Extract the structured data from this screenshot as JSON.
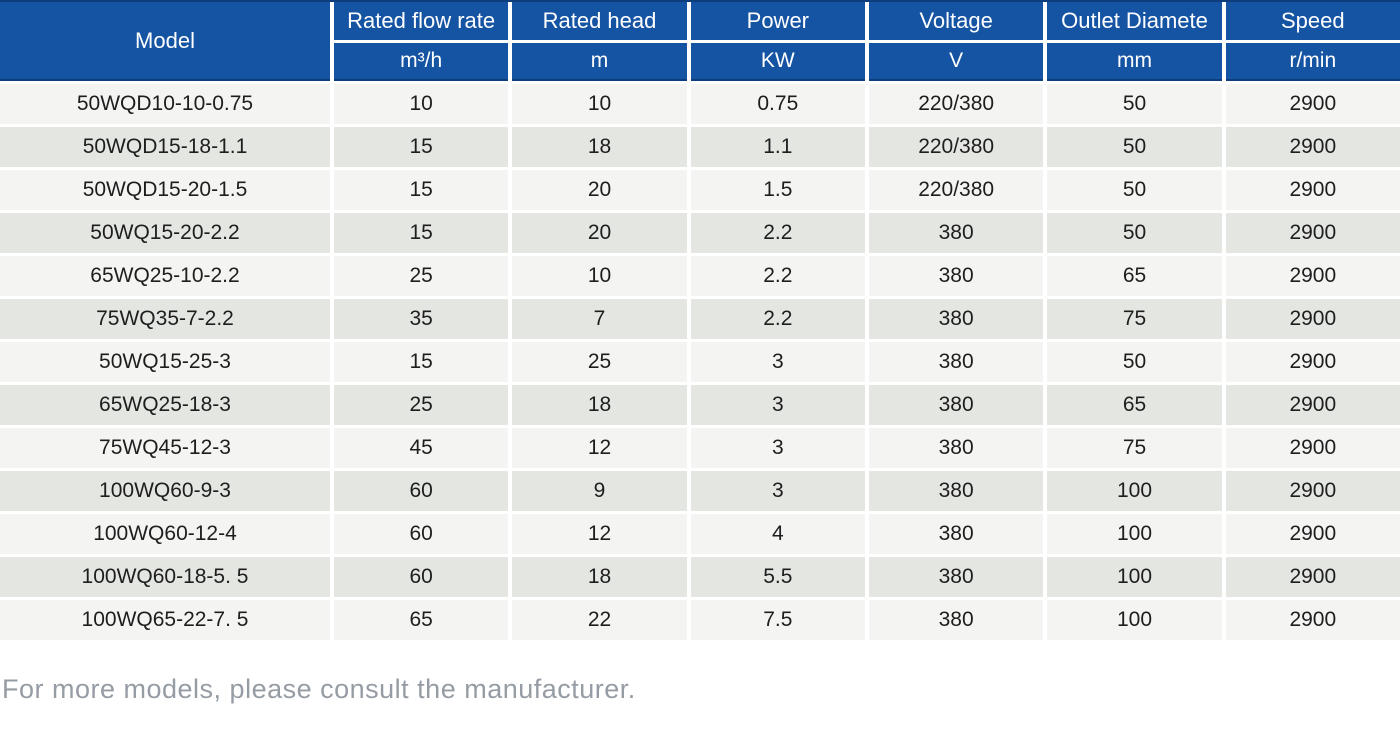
{
  "header": {
    "columns": [
      {
        "label": "Model",
        "unit": ""
      },
      {
        "label": "Rated flow rate",
        "unit": "m³/h"
      },
      {
        "label": "Rated head",
        "unit": "m"
      },
      {
        "label": "Power",
        "unit": "KW"
      },
      {
        "label": "Voltage",
        "unit": "V"
      },
      {
        "label": "Outlet Diamete",
        "unit": "mm"
      },
      {
        "label": "Speed",
        "unit": "r/min"
      }
    ]
  },
  "rows": [
    [
      "50WQD10-10-0.75",
      "10",
      "10",
      "0.75",
      "220/380",
      "50",
      "2900"
    ],
    [
      "50WQD15-18-1.1",
      "15",
      "18",
      "1.1",
      "220/380",
      "50",
      "2900"
    ],
    [
      "50WQD15-20-1.5",
      "15",
      "20",
      "1.5",
      "220/380",
      "50",
      "2900"
    ],
    [
      "50WQ15-20-2.2",
      "15",
      "20",
      "2.2",
      "380",
      "50",
      "2900"
    ],
    [
      "65WQ25-10-2.2",
      "25",
      "10",
      "2.2",
      "380",
      "65",
      "2900"
    ],
    [
      "75WQ35-7-2.2",
      "35",
      "7",
      "2.2",
      "380",
      "75",
      "2900"
    ],
    [
      "50WQ15-25-3",
      "15",
      "25",
      "3",
      "380",
      "50",
      "2900"
    ],
    [
      "65WQ25-18-3",
      "25",
      "18",
      "3",
      "380",
      "65",
      "2900"
    ],
    [
      "75WQ45-12-3",
      "45",
      "12",
      "3",
      "380",
      "75",
      "2900"
    ],
    [
      "100WQ60-9-3",
      "60",
      "9",
      "3",
      "380",
      "100",
      "2900"
    ],
    [
      "100WQ60-12-4",
      "60",
      "12",
      "4",
      "380",
      "100",
      "2900"
    ],
    [
      "100WQ60-18-5. 5",
      "60",
      "18",
      "5.5",
      "380",
      "100",
      "2900"
    ],
    [
      "100WQ65-22-7. 5",
      "65",
      "22",
      "7.5",
      "380",
      "100",
      "2900"
    ]
  ],
  "footer": {
    "note": "For more models, please consult the manufacturer."
  },
  "colors": {
    "header_bg": "#1554A3",
    "header_border": "#0E3D7E",
    "row_light": "#F4F4F3",
    "row_shade": "#E4E6E2",
    "body_text": "#1E1E1E",
    "footer_text": "#969CA4"
  }
}
